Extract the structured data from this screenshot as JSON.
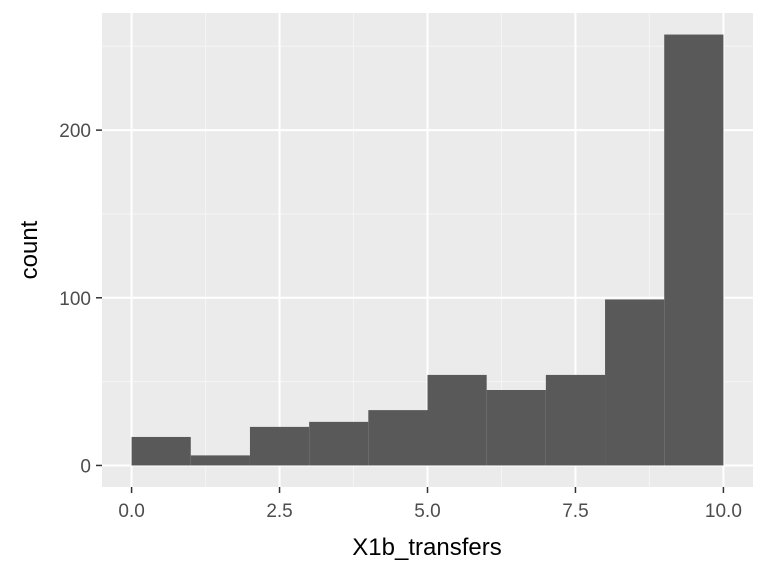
{
  "chart_data": {
    "type": "bar",
    "subtype": "histogram",
    "title": "",
    "xlabel": "X1b_transfers",
    "ylabel": "count",
    "bins": [
      {
        "x0": 0,
        "x1": 1,
        "count": 17
      },
      {
        "x0": 1,
        "x1": 2,
        "count": 6
      },
      {
        "x0": 2,
        "x1": 3,
        "count": 23
      },
      {
        "x0": 3,
        "x1": 4,
        "count": 26
      },
      {
        "x0": 4,
        "x1": 5,
        "count": 33
      },
      {
        "x0": 5,
        "x1": 6,
        "count": 54
      },
      {
        "x0": 6,
        "x1": 7,
        "count": 45
      },
      {
        "x0": 7,
        "x1": 8,
        "count": 54
      },
      {
        "x0": 8,
        "x1": 9,
        "count": 99
      },
      {
        "x0": 9,
        "x1": 10,
        "count": 257
      }
    ],
    "xlim": [
      -0.5,
      10.5
    ],
    "ylim": [
      -12.85,
      269.85
    ],
    "x_ticks": [
      0,
      2.5,
      5,
      7.5,
      10
    ],
    "x_tick_labels": [
      "0.0",
      "2.5",
      "5.0",
      "7.5",
      "10.0"
    ],
    "y_ticks": [
      0,
      100,
      200
    ],
    "y_tick_labels": [
      "0",
      "100",
      "200"
    ],
    "grid": true,
    "legend": "none",
    "colors": {
      "bar": "#595959",
      "panel_background": "#ebebeb",
      "grid_major": "#ffffff",
      "grid_minor": "#f5f5f5",
      "tick_label": "#4d4d4d",
      "axis_title": "#000000"
    }
  }
}
